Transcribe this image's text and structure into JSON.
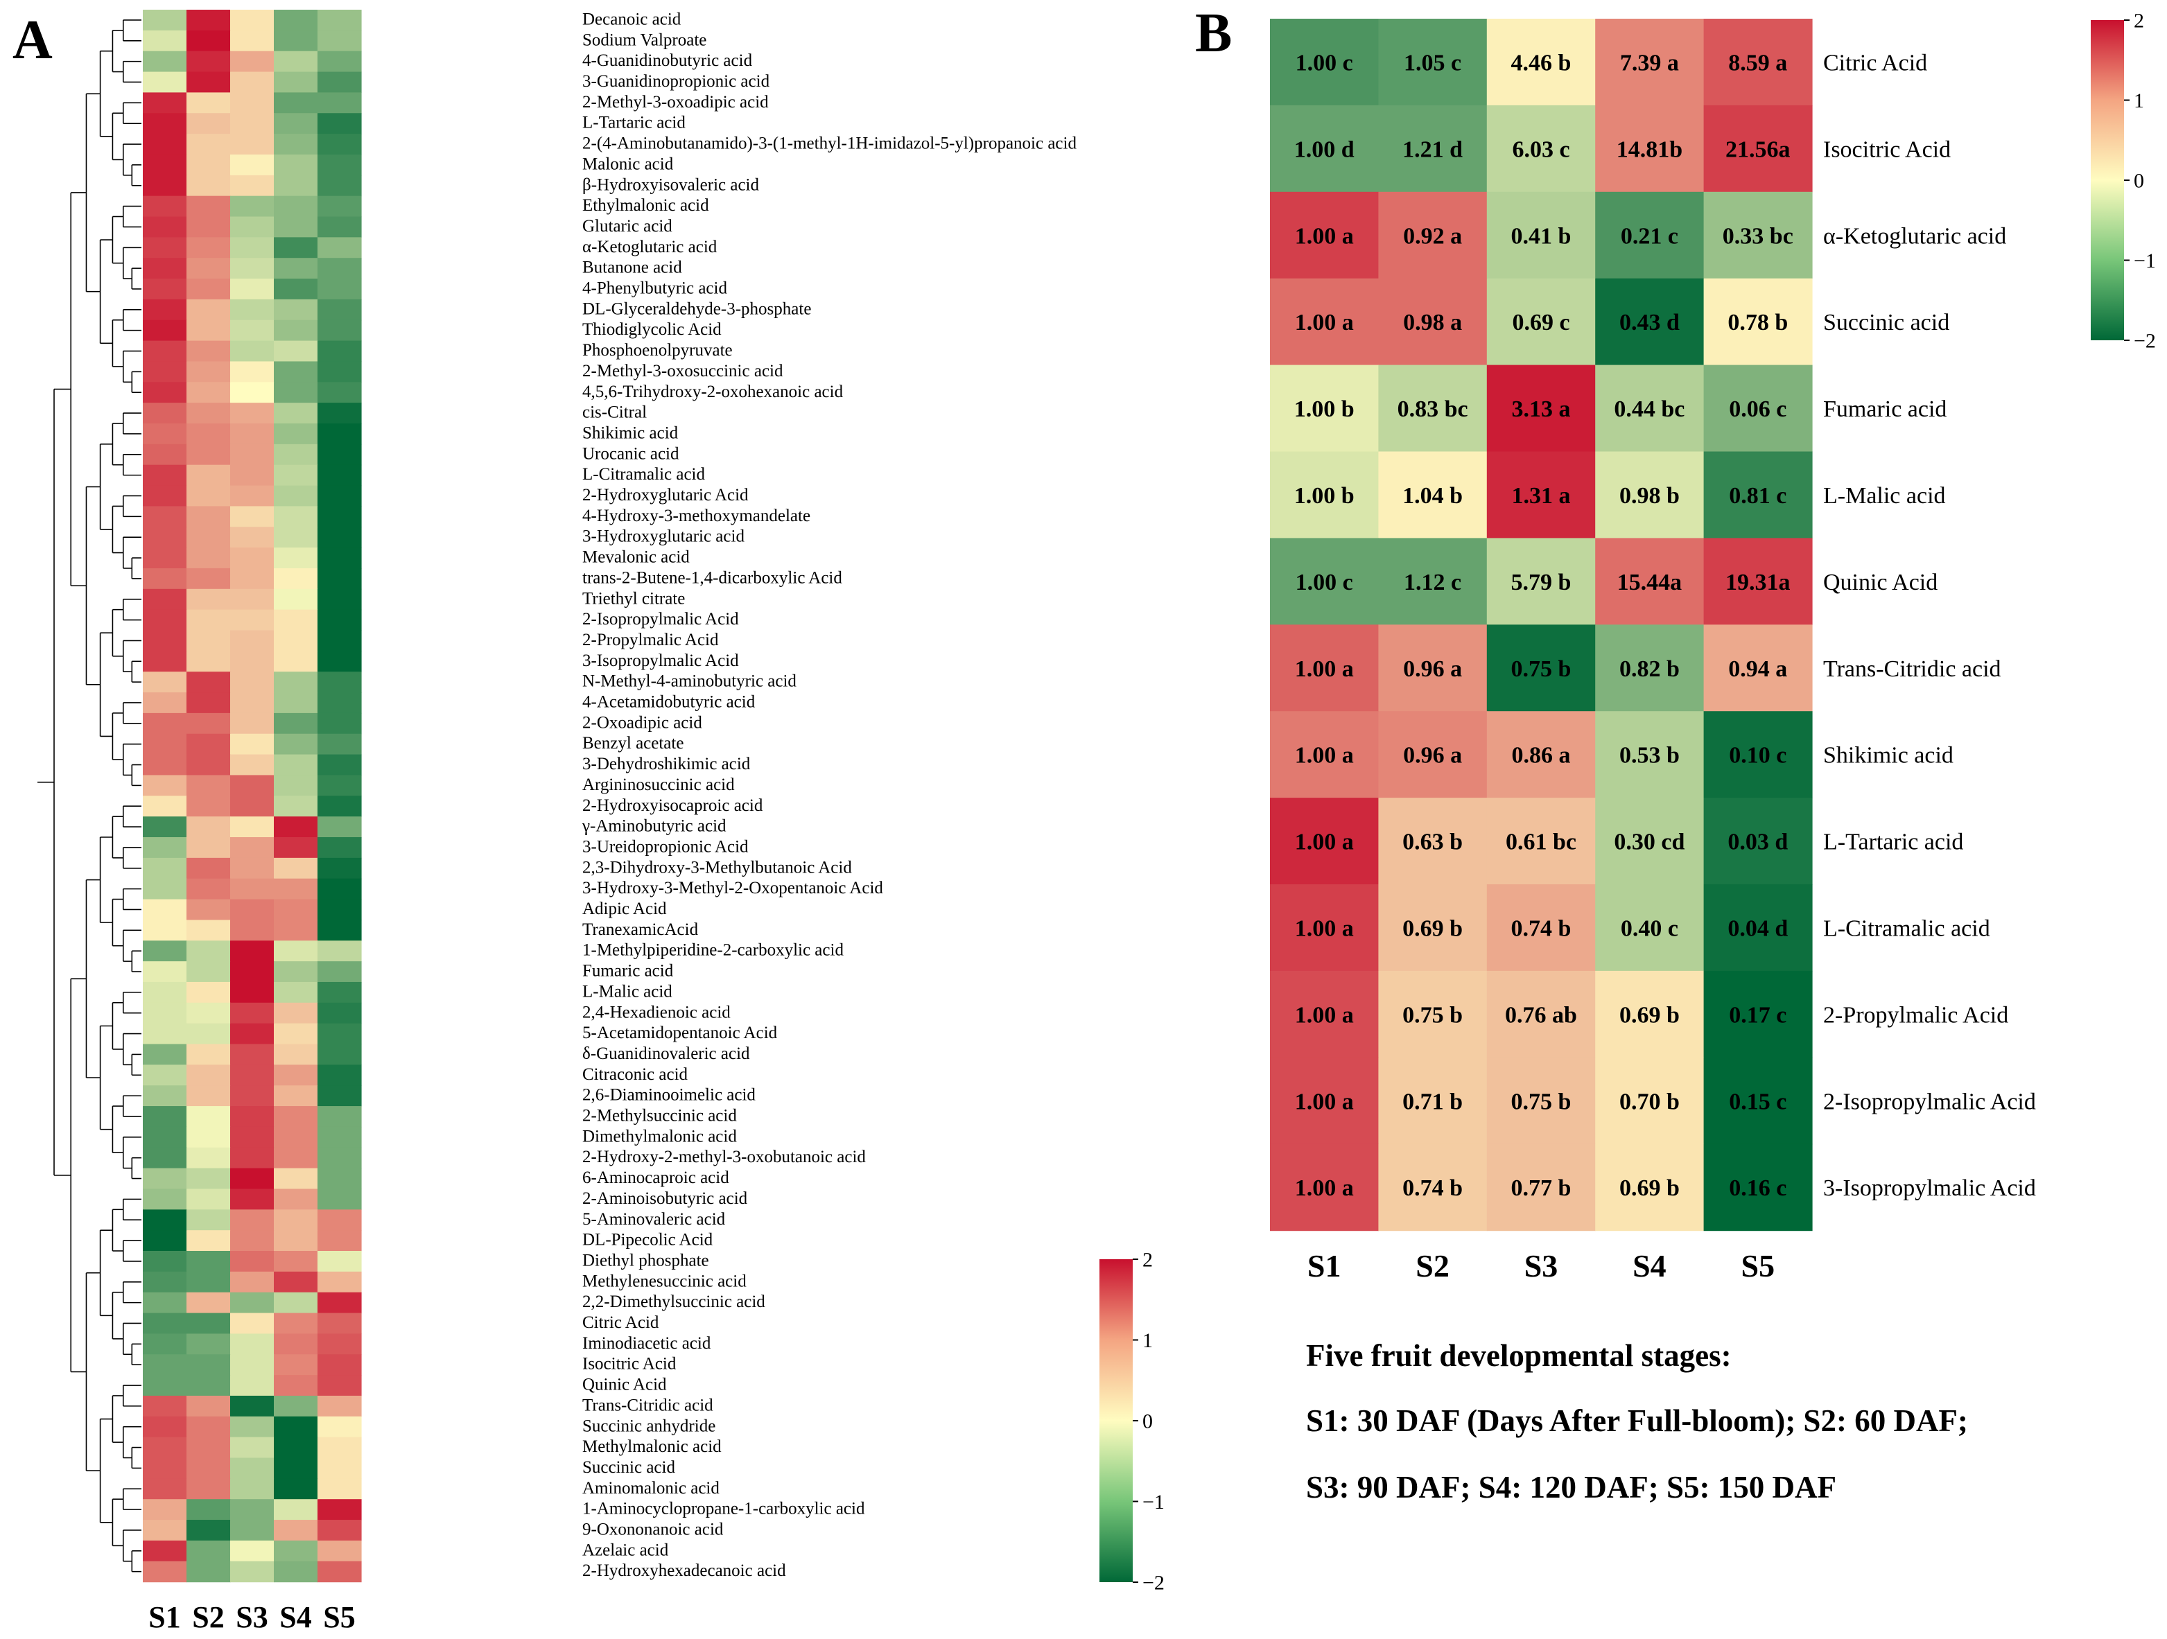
{
  "figure": {
    "footnote": {
      "line1": "Five fruit developmental stages:",
      "line2": "S1: 30 DAF (Days After Full-bloom); S2: 60 DAF;",
      "line3": "S3: 90 DAF; S4: 120 DAF; S5: 150 DAF"
    }
  },
  "chart_data": [
    {
      "type": "heatmap",
      "panel_label": "A",
      "columns": [
        "S1",
        "S2",
        "S3",
        "S4",
        "S5"
      ],
      "color_scale": {
        "min": -2,
        "max": 2,
        "ticks": [
          2,
          1,
          0,
          -1,
          -2
        ],
        "tick_labels": [
          "2",
          "1",
          "0",
          "−1",
          "−2"
        ],
        "colors": [
          "#006837",
          "#fffcc0",
          "#c8102e"
        ]
      },
      "dendrogram": "rows (hierarchical clustering)",
      "rows": [
        {
          "name": "Decanoic acid",
          "values": [
            -0.6,
            1.9,
            0.2,
            -1.1,
            -0.8
          ]
        },
        {
          "name": "Sodium Valproate",
          "values": [
            -0.3,
            2.0,
            0.2,
            -1.1,
            -0.8
          ]
        },
        {
          "name": "4-Guanidinobutyric acid",
          "values": [
            -0.8,
            1.8,
            0.7,
            -0.6,
            -1.1
          ]
        },
        {
          "name": "3-Guanidinopropionic acid",
          "values": [
            -0.2,
            1.9,
            0.4,
            -0.8,
            -1.4
          ]
        },
        {
          "name": "2-Methyl-3-oxoadipic acid",
          "values": [
            1.8,
            0.3,
            0.4,
            -1.2,
            -1.2
          ]
        },
        {
          "name": "L-Tartaric acid",
          "values": [
            1.9,
            0.5,
            0.4,
            -1.0,
            -1.7
          ]
        },
        {
          "name": "2-(4-Aminobutanamido)-3-(1-methyl-1H-imidazol-5-yl)propanoic acid",
          "values": [
            1.9,
            0.4,
            0.4,
            -0.9,
            -1.6
          ]
        },
        {
          "name": "Malonic acid",
          "values": [
            1.9,
            0.4,
            0.1,
            -0.7,
            -1.5
          ]
        },
        {
          "name": "β-Hydroxyisovaleric acid",
          "values": [
            1.9,
            0.4,
            0.3,
            -0.7,
            -1.5
          ]
        },
        {
          "name": "Ethylmalonic acid",
          "values": [
            1.6,
            1.1,
            -0.8,
            -0.9,
            -1.3
          ]
        },
        {
          "name": "Glutaric acid",
          "values": [
            1.7,
            1.1,
            -0.6,
            -0.9,
            -1.4
          ]
        },
        {
          "name": "α-Ketoglutaric acid",
          "values": [
            1.6,
            1.0,
            -0.5,
            -1.5,
            -0.9
          ]
        },
        {
          "name": "Butanone acid",
          "values": [
            1.7,
            0.9,
            -0.4,
            -1.0,
            -1.2
          ]
        },
        {
          "name": "4-Phenylbutyric acid",
          "values": [
            1.6,
            1.0,
            -0.2,
            -1.4,
            -1.2
          ]
        },
        {
          "name": "DL-Glyceraldehyde-3-phosphate",
          "values": [
            1.8,
            0.6,
            -0.5,
            -0.7,
            -1.4
          ]
        },
        {
          "name": "Thiodiglycolic Acid",
          "values": [
            1.9,
            0.6,
            -0.4,
            -0.8,
            -1.4
          ]
        },
        {
          "name": "Phosphoenolpyruvate",
          "values": [
            1.6,
            0.9,
            -0.5,
            -0.4,
            -1.6
          ]
        },
        {
          "name": "2-Methyl-3-oxosuccinic acid",
          "values": [
            1.6,
            0.8,
            0.1,
            -1.1,
            -1.6
          ]
        },
        {
          "name": "4,5,6-Trihydroxy-2-oxohexanoic acid",
          "values": [
            1.7,
            0.7,
            0.0,
            -1.1,
            -1.5
          ]
        },
        {
          "name": "cis-Citral",
          "values": [
            1.3,
            0.9,
            0.7,
            -0.6,
            -1.9
          ]
        },
        {
          "name": "Shikimic acid",
          "values": [
            1.2,
            1.0,
            0.8,
            -0.8,
            -2.0
          ]
        },
        {
          "name": "Urocanic acid",
          "values": [
            1.3,
            1.0,
            0.8,
            -0.6,
            -2.0
          ]
        },
        {
          "name": "L-Citramalic acid",
          "values": [
            1.6,
            0.6,
            0.8,
            -0.5,
            -2.0
          ]
        },
        {
          "name": "2-Hydroxyglutaric Acid",
          "values": [
            1.6,
            0.6,
            0.7,
            -0.6,
            -2.0
          ]
        },
        {
          "name": "4-Hydroxy-3-methoxymandelate",
          "values": [
            1.4,
            0.8,
            0.3,
            -0.4,
            -2.0
          ]
        },
        {
          "name": "3-Hydroxyglutaric acid",
          "values": [
            1.4,
            0.8,
            0.5,
            -0.4,
            -2.0
          ]
        },
        {
          "name": "Mevalonic acid",
          "values": [
            1.4,
            0.8,
            0.6,
            -0.2,
            -2.0
          ]
        },
        {
          "name": "trans-2-Butene-1,4-dicarboxylic Acid",
          "values": [
            1.2,
            1.0,
            0.6,
            0.1,
            -2.0
          ]
        },
        {
          "name": "Triethyl citrate",
          "values": [
            1.6,
            0.5,
            0.5,
            -0.1,
            -2.0
          ]
        },
        {
          "name": "2-Isopropylmalic Acid",
          "values": [
            1.6,
            0.4,
            0.4,
            0.2,
            -2.0
          ]
        },
        {
          "name": "2-Propylmalic Acid",
          "values": [
            1.6,
            0.4,
            0.5,
            0.2,
            -2.0
          ]
        },
        {
          "name": "3-Isopropylmalic Acid",
          "values": [
            1.6,
            0.4,
            0.5,
            0.2,
            -2.0
          ]
        },
        {
          "name": "N-Methyl-4-aminobutyric acid",
          "values": [
            0.5,
            1.6,
            0.5,
            -0.7,
            -1.6
          ]
        },
        {
          "name": "4-Acetamidobutyric acid",
          "values": [
            0.7,
            1.6,
            0.5,
            -0.7,
            -1.6
          ]
        },
        {
          "name": "2-Oxoadipic acid",
          "values": [
            1.2,
            1.2,
            0.5,
            -1.2,
            -1.6
          ]
        },
        {
          "name": "Benzyl acetate",
          "values": [
            1.2,
            1.4,
            0.2,
            -0.9,
            -1.4
          ]
        },
        {
          "name": "3-Dehydroshikimic acid",
          "values": [
            1.2,
            1.4,
            0.4,
            -0.6,
            -1.7
          ]
        },
        {
          "name": "Argininosuccinic acid",
          "values": [
            0.6,
            1.0,
            1.3,
            -0.6,
            -1.6
          ]
        },
        {
          "name": "2-Hydroxyisocaproic acid",
          "values": [
            0.2,
            1.0,
            1.3,
            -0.5,
            -1.8
          ]
        },
        {
          "name": "γ-Aminobutyric acid",
          "values": [
            -1.5,
            0.5,
            0.2,
            1.9,
            -1.1
          ]
        },
        {
          "name": "3-Ureidopropionic Acid",
          "values": [
            -0.8,
            0.5,
            0.8,
            1.7,
            -1.7
          ]
        },
        {
          "name": "2,3-Dihydroxy-3-Methylbutanoic Acid",
          "values": [
            -0.6,
            1.2,
            0.8,
            0.4,
            -1.9
          ]
        },
        {
          "name": "3-Hydroxy-3-Methyl-2-Oxopentanoic Acid",
          "values": [
            -0.6,
            1.1,
            0.9,
            0.9,
            -2.0
          ]
        },
        {
          "name": "Adipic Acid",
          "values": [
            0.1,
            0.9,
            1.1,
            1.0,
            -2.0
          ]
        },
        {
          "name": "TranexamicAcid",
          "values": [
            0.1,
            0.2,
            1.1,
            1.0,
            -2.0
          ]
        },
        {
          "name": "1-Methylpiperidine-2-carboxylic acid",
          "values": [
            -1.1,
            -0.5,
            2.0,
            -0.3,
            -0.5
          ]
        },
        {
          "name": "Fumaric acid",
          "values": [
            -0.2,
            -0.5,
            2.0,
            -0.7,
            -1.1
          ]
        },
        {
          "name": "L-Malic acid",
          "values": [
            -0.3,
            0.2,
            2.0,
            -0.5,
            -1.6
          ]
        },
        {
          "name": "2,4-Hexadienoic acid",
          "values": [
            -0.3,
            -0.2,
            1.6,
            0.5,
            -1.7
          ]
        },
        {
          "name": "5-Acetamidopentanoic Acid",
          "values": [
            -0.3,
            -0.3,
            1.8,
            0.3,
            -1.6
          ]
        },
        {
          "name": "δ-Guanidinovaleric acid",
          "values": [
            -1.0,
            0.3,
            1.5,
            0.4,
            -1.6
          ]
        },
        {
          "name": "Citraconic acid",
          "values": [
            -0.5,
            0.5,
            1.5,
            0.8,
            -1.8
          ]
        },
        {
          "name": "2,6-Diaminooimelic acid",
          "values": [
            -0.7,
            0.5,
            1.5,
            0.6,
            -1.8
          ]
        },
        {
          "name": "2-Methylsuccinic acid",
          "values": [
            -1.4,
            -0.1,
            1.6,
            1.0,
            -1.1
          ]
        },
        {
          "name": "Dimethylmalonic acid",
          "values": [
            -1.4,
            -0.1,
            1.6,
            1.0,
            -1.1
          ]
        },
        {
          "name": "2-Hydroxy-2-methyl-3-oxobutanoic acid",
          "values": [
            -1.4,
            -0.2,
            1.6,
            1.0,
            -1.1
          ]
        },
        {
          "name": "6-Aminocaproic acid",
          "values": [
            -0.7,
            -0.5,
            2.0,
            0.3,
            -1.1
          ]
        },
        {
          "name": "2-Aminoisobutyric acid",
          "values": [
            -0.8,
            -0.3,
            1.8,
            0.8,
            -1.1
          ]
        },
        {
          "name": "5-Aminovaleric acid",
          "values": [
            -2.0,
            -0.5,
            1.0,
            0.6,
            1.0
          ]
        },
        {
          "name": "DL-Pipecolic Acid",
          "values": [
            -2.0,
            0.2,
            1.0,
            0.6,
            1.0
          ]
        },
        {
          "name": "Diethyl phosphate",
          "values": [
            -1.5,
            -1.3,
            1.2,
            1.0,
            -0.2
          ]
        },
        {
          "name": "Methylenesuccinic acid",
          "values": [
            -1.4,
            -1.3,
            0.8,
            1.6,
            0.6
          ]
        },
        {
          "name": "2,2-Dimethylsuccinic acid",
          "values": [
            -1.1,
            0.6,
            -0.9,
            -0.5,
            1.8
          ]
        },
        {
          "name": "Citric Acid",
          "values": [
            -1.4,
            -1.4,
            0.2,
            1.0,
            1.3
          ]
        },
        {
          "name": "Iminodiacetic acid",
          "values": [
            -1.3,
            -1.1,
            -0.3,
            1.1,
            1.4
          ]
        },
        {
          "name": "Isocitric Acid",
          "values": [
            -1.2,
            -1.2,
            -0.3,
            1.0,
            1.5
          ]
        },
        {
          "name": "Quinic Acid",
          "values": [
            -1.2,
            -1.2,
            -0.3,
            1.1,
            1.5
          ]
        },
        {
          "name": "Trans-Citridic acid",
          "values": [
            1.4,
            0.9,
            -1.9,
            -1.0,
            0.7
          ]
        },
        {
          "name": "Succinic anhydride",
          "values": [
            1.5,
            1.1,
            -0.7,
            -2.0,
            0.1
          ]
        },
        {
          "name": "Methylmalonic acid",
          "values": [
            1.4,
            1.1,
            -0.4,
            -2.0,
            0.2
          ]
        },
        {
          "name": "Succinic acid",
          "values": [
            1.4,
            1.1,
            -0.6,
            -2.0,
            0.2
          ]
        },
        {
          "name": "Aminomalonic acid",
          "values": [
            1.4,
            1.1,
            -0.6,
            -2.0,
            0.2
          ]
        },
        {
          "name": "1-Aminocyclopropane-1-carboxylic acid",
          "values": [
            0.7,
            -1.3,
            -1.0,
            -0.3,
            1.9
          ]
        },
        {
          "name": "9-Oxononanoic acid",
          "values": [
            0.6,
            -1.8,
            -1.0,
            0.7,
            1.5
          ]
        },
        {
          "name": "Azelaic acid",
          "values": [
            1.7,
            -1.1,
            -0.1,
            -0.9,
            0.7
          ]
        },
        {
          "name": "2-Hydroxyhexadecanoic acid",
          "values": [
            1.1,
            -1.1,
            -0.5,
            -1.0,
            1.3
          ]
        }
      ]
    },
    {
      "type": "heatmap",
      "panel_label": "B",
      "columns": [
        "S1",
        "S2",
        "S3",
        "S4",
        "S5"
      ],
      "color_scale": {
        "min": -2,
        "max": 2,
        "ticks": [
          2,
          1,
          0,
          -1,
          -2
        ],
        "tick_labels": [
          "2",
          "1",
          "0",
          "−1",
          "−2"
        ],
        "colors": [
          "#006837",
          "#fffcc0",
          "#c8102e"
        ]
      },
      "rows": [
        {
          "name": "Citric Acid",
          "values": [
            -1.4,
            -1.3,
            0.1,
            1.0,
            1.4
          ],
          "labels": [
            "1.00 c",
            "1.05 c",
            "4.46 b",
            "7.39 a",
            "8.59 a"
          ]
        },
        {
          "name": "Isocitric Acid",
          "values": [
            -1.2,
            -1.2,
            -0.5,
            1.0,
            1.6
          ],
          "labels": [
            "1.00 d",
            "1.21 d",
            "6.03 c",
            "14.81b",
            "21.56a"
          ]
        },
        {
          "name": "α-Ketoglutaric acid",
          "values": [
            1.6,
            1.2,
            -0.6,
            -1.4,
            -0.8
          ],
          "labels": [
            "1.00 a",
            "0.92 a",
            "0.41 b",
            "0.21 c",
            "0.33 bc"
          ]
        },
        {
          "name": "Succinic acid",
          "values": [
            1.2,
            1.2,
            -0.5,
            -1.9,
            0.1
          ],
          "labels": [
            "1.00 a",
            "0.98 a",
            "0.69 c",
            "0.43 d",
            "0.78 b"
          ]
        },
        {
          "name": "Fumaric acid",
          "values": [
            -0.2,
            -0.5,
            1.9,
            -0.6,
            -1.0
          ],
          "labels": [
            "1.00 b",
            "0.83 bc",
            "3.13 a",
            "0.44 bc",
            "0.06 c"
          ]
        },
        {
          "name": "L-Malic acid",
          "values": [
            -0.3,
            0.1,
            1.8,
            -0.3,
            -1.6
          ],
          "labels": [
            "1.00 b",
            "1.04 b",
            "1.31 a",
            "0.98 b",
            "0.81 c"
          ]
        },
        {
          "name": "Quinic Acid",
          "values": [
            -1.2,
            -1.2,
            -0.5,
            1.2,
            1.6
          ],
          "labels": [
            "1.00 c",
            "1.12 c",
            "5.79 b",
            "15.44a",
            "19.31a"
          ]
        },
        {
          "name": "Trans-Citridic acid",
          "values": [
            1.3,
            0.9,
            -1.9,
            -1.0,
            0.7
          ],
          "labels": [
            "1.00 a",
            "0.96 a",
            "0.75 b",
            "0.82 b",
            "0.94 a"
          ]
        },
        {
          "name": "Shikimic acid",
          "values": [
            1.1,
            1.0,
            0.8,
            -0.6,
            -1.9
          ],
          "labels": [
            "1.00 a",
            "0.96 a",
            "0.86 a",
            "0.53 b",
            "0.10 c"
          ]
        },
        {
          "name": "L-Tartaric acid",
          "values": [
            1.8,
            0.5,
            0.5,
            -0.6,
            -1.8
          ],
          "labels": [
            "1.00 a",
            "0.63 b",
            "0.61 bc",
            "0.30 cd",
            "0.03 d"
          ]
        },
        {
          "name": "L-Citramalic acid",
          "values": [
            1.6,
            0.5,
            0.7,
            -0.6,
            -1.9
          ],
          "labels": [
            "1.00 a",
            "0.69 b",
            "0.74 b",
            "0.40 c",
            "0.04 d"
          ]
        },
        {
          "name": "2-Propylmalic Acid",
          "values": [
            1.5,
            0.4,
            0.5,
            0.2,
            -2.0
          ],
          "labels": [
            "1.00 a",
            "0.75 b",
            "0.76 ab",
            "0.69 b",
            "0.17 c"
          ]
        },
        {
          "name": "2-Isopropylmalic Acid",
          "values": [
            1.5,
            0.4,
            0.5,
            0.2,
            -2.0
          ],
          "labels": [
            "1.00 a",
            "0.71 b",
            "0.75 b",
            "0.70 b",
            "0.15 c"
          ]
        },
        {
          "name": "3-Isopropylmalic Acid",
          "values": [
            1.5,
            0.4,
            0.5,
            0.2,
            -2.0
          ],
          "labels": [
            "1.00 a",
            "0.74 b",
            "0.77 b",
            "0.69 b",
            "0.16 c"
          ]
        }
      ]
    }
  ]
}
